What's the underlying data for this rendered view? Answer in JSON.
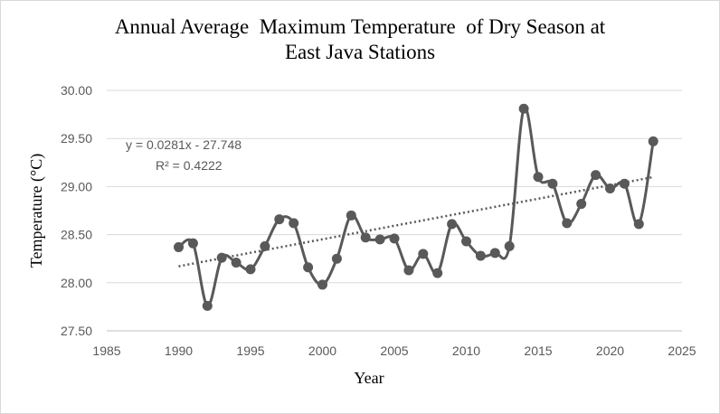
{
  "chart_data": {
    "type": "line",
    "title_lines": [
      "Annual Average  Maximum Temperature  of Dry Season at",
      "East Java Stations"
    ],
    "xlabel": "Year",
    "ylabel": "Temperature (°C)",
    "xlim": [
      1985,
      2025
    ],
    "ylim": [
      27.5,
      30.0
    ],
    "x_ticks": [
      "1985",
      "1990",
      "1995",
      "2000",
      "2005",
      "2010",
      "2015",
      "2020",
      "2025"
    ],
    "y_ticks": [
      "27.50",
      "28.00",
      "28.50",
      "29.00",
      "29.50",
      "30.00"
    ],
    "grid": true,
    "legend": "none",
    "series_color": "#595959",
    "series": [
      {
        "x": [
          1990,
          1991,
          1992,
          1993,
          1994,
          1995,
          1996,
          1997,
          1998,
          1999,
          2000,
          2001,
          2002,
          2003,
          2004,
          2005,
          2006,
          2007,
          2008,
          2009,
          2010,
          2011,
          2012,
          2013,
          2014,
          2015,
          2016,
          2017,
          2018,
          2019,
          2020,
          2021,
          2022,
          2023
        ],
        "values": [
          28.37,
          28.41,
          27.76,
          28.26,
          28.21,
          28.14,
          28.38,
          28.66,
          28.62,
          28.16,
          27.98,
          28.25,
          28.7,
          28.47,
          28.45,
          28.46,
          28.13,
          28.3,
          28.1,
          28.61,
          28.43,
          28.28,
          28.31,
          28.38,
          29.81,
          29.1,
          29.03,
          28.62,
          28.82,
          29.12,
          28.98,
          29.03,
          28.61,
          29.47
        ]
      }
    ],
    "trendline": {
      "equation": "y = 0.0281x - 27.748",
      "r_squared": "R² = 0.4222",
      "slope": 0.0281,
      "intercept": -27.748,
      "x_range": [
        1990,
        2023
      ]
    }
  }
}
